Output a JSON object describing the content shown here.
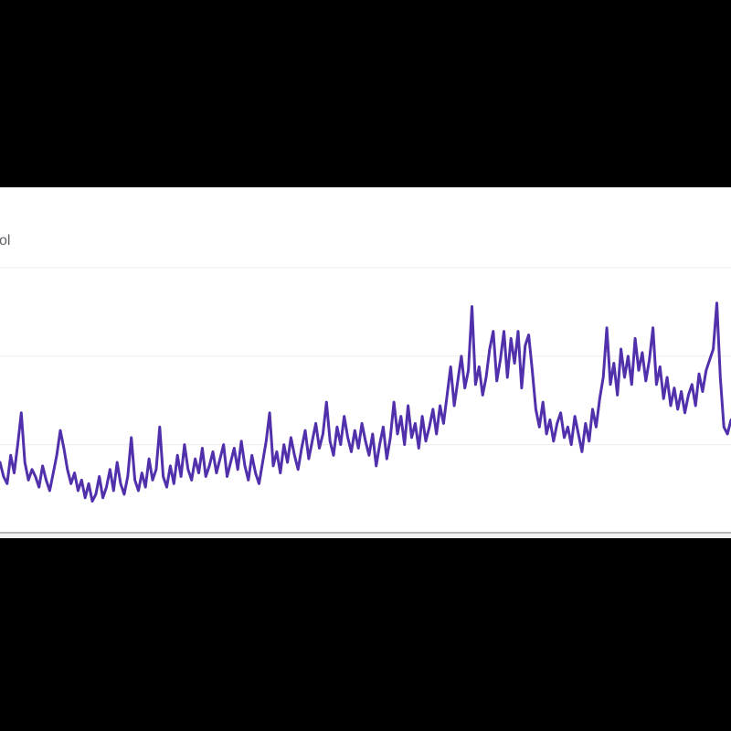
{
  "page": {
    "background_color": "#000000"
  },
  "panel": {
    "background_color": "#ffffff",
    "partial_series_label": "ol",
    "label_color": "#5f6368",
    "axis_divider_color": "#b6b6b6",
    "below_strip_color": "#f2f2f2"
  },
  "chart_data": {
    "type": "line",
    "title": "",
    "series_label_partial": "ol",
    "line_color": "#5130ac",
    "line_width": 3,
    "gridline_color": "#ececec",
    "gridline_values": [
      25,
      50,
      75
    ],
    "ylim": [
      0,
      100
    ],
    "grid": "horizontal-only",
    "legend_position": "none",
    "x_axis_labels_visible": false,
    "y_axis_labels_visible": false,
    "values": [
      20,
      16,
      14,
      22,
      17,
      25,
      34,
      20,
      15,
      18,
      16,
      13,
      19,
      15,
      12,
      17,
      22,
      29,
      24,
      18,
      14,
      17,
      12,
      15,
      10,
      14,
      9,
      11,
      16,
      10,
      13,
      18,
      12,
      20,
      14,
      11,
      16,
      27,
      15,
      12,
      17,
      13,
      21,
      15,
      18,
      30,
      16,
      13,
      19,
      14,
      22,
      16,
      25,
      18,
      15,
      21,
      17,
      24,
      16,
      19,
      23,
      17,
      21,
      25,
      16,
      20,
      24,
      18,
      26,
      19,
      15,
      22,
      17,
      14,
      20,
      26,
      34,
      19,
      23,
      17,
      25,
      20,
      27,
      22,
      18,
      24,
      29,
      21,
      26,
      31,
      24,
      28,
      37,
      26,
      22,
      30,
      25,
      33,
      27,
      23,
      29,
      24,
      31,
      26,
      22,
      28,
      19,
      25,
      30,
      21,
      27,
      37,
      28,
      33,
      25,
      36,
      27,
      31,
      24,
      33,
      26,
      30,
      35,
      28,
      36,
      31,
      39,
      47,
      36,
      43,
      50,
      41,
      46,
      64,
      42,
      47,
      39,
      44,
      52,
      57,
      43,
      49,
      57,
      44,
      55,
      48,
      57,
      41,
      53,
      56,
      46,
      35,
      30,
      37,
      28,
      32,
      26,
      31,
      34,
      27,
      30,
      25,
      33,
      28,
      23,
      31,
      26,
      35,
      30,
      38,
      44,
      58,
      42,
      48,
      39,
      52,
      44,
      50,
      42,
      55,
      46,
      51,
      43,
      49,
      58,
      42,
      47,
      38,
      44,
      36,
      41,
      35,
      40,
      34,
      39,
      42,
      36,
      45,
      40,
      46,
      49,
      52,
      65,
      44,
      30,
      28,
      32
    ]
  }
}
